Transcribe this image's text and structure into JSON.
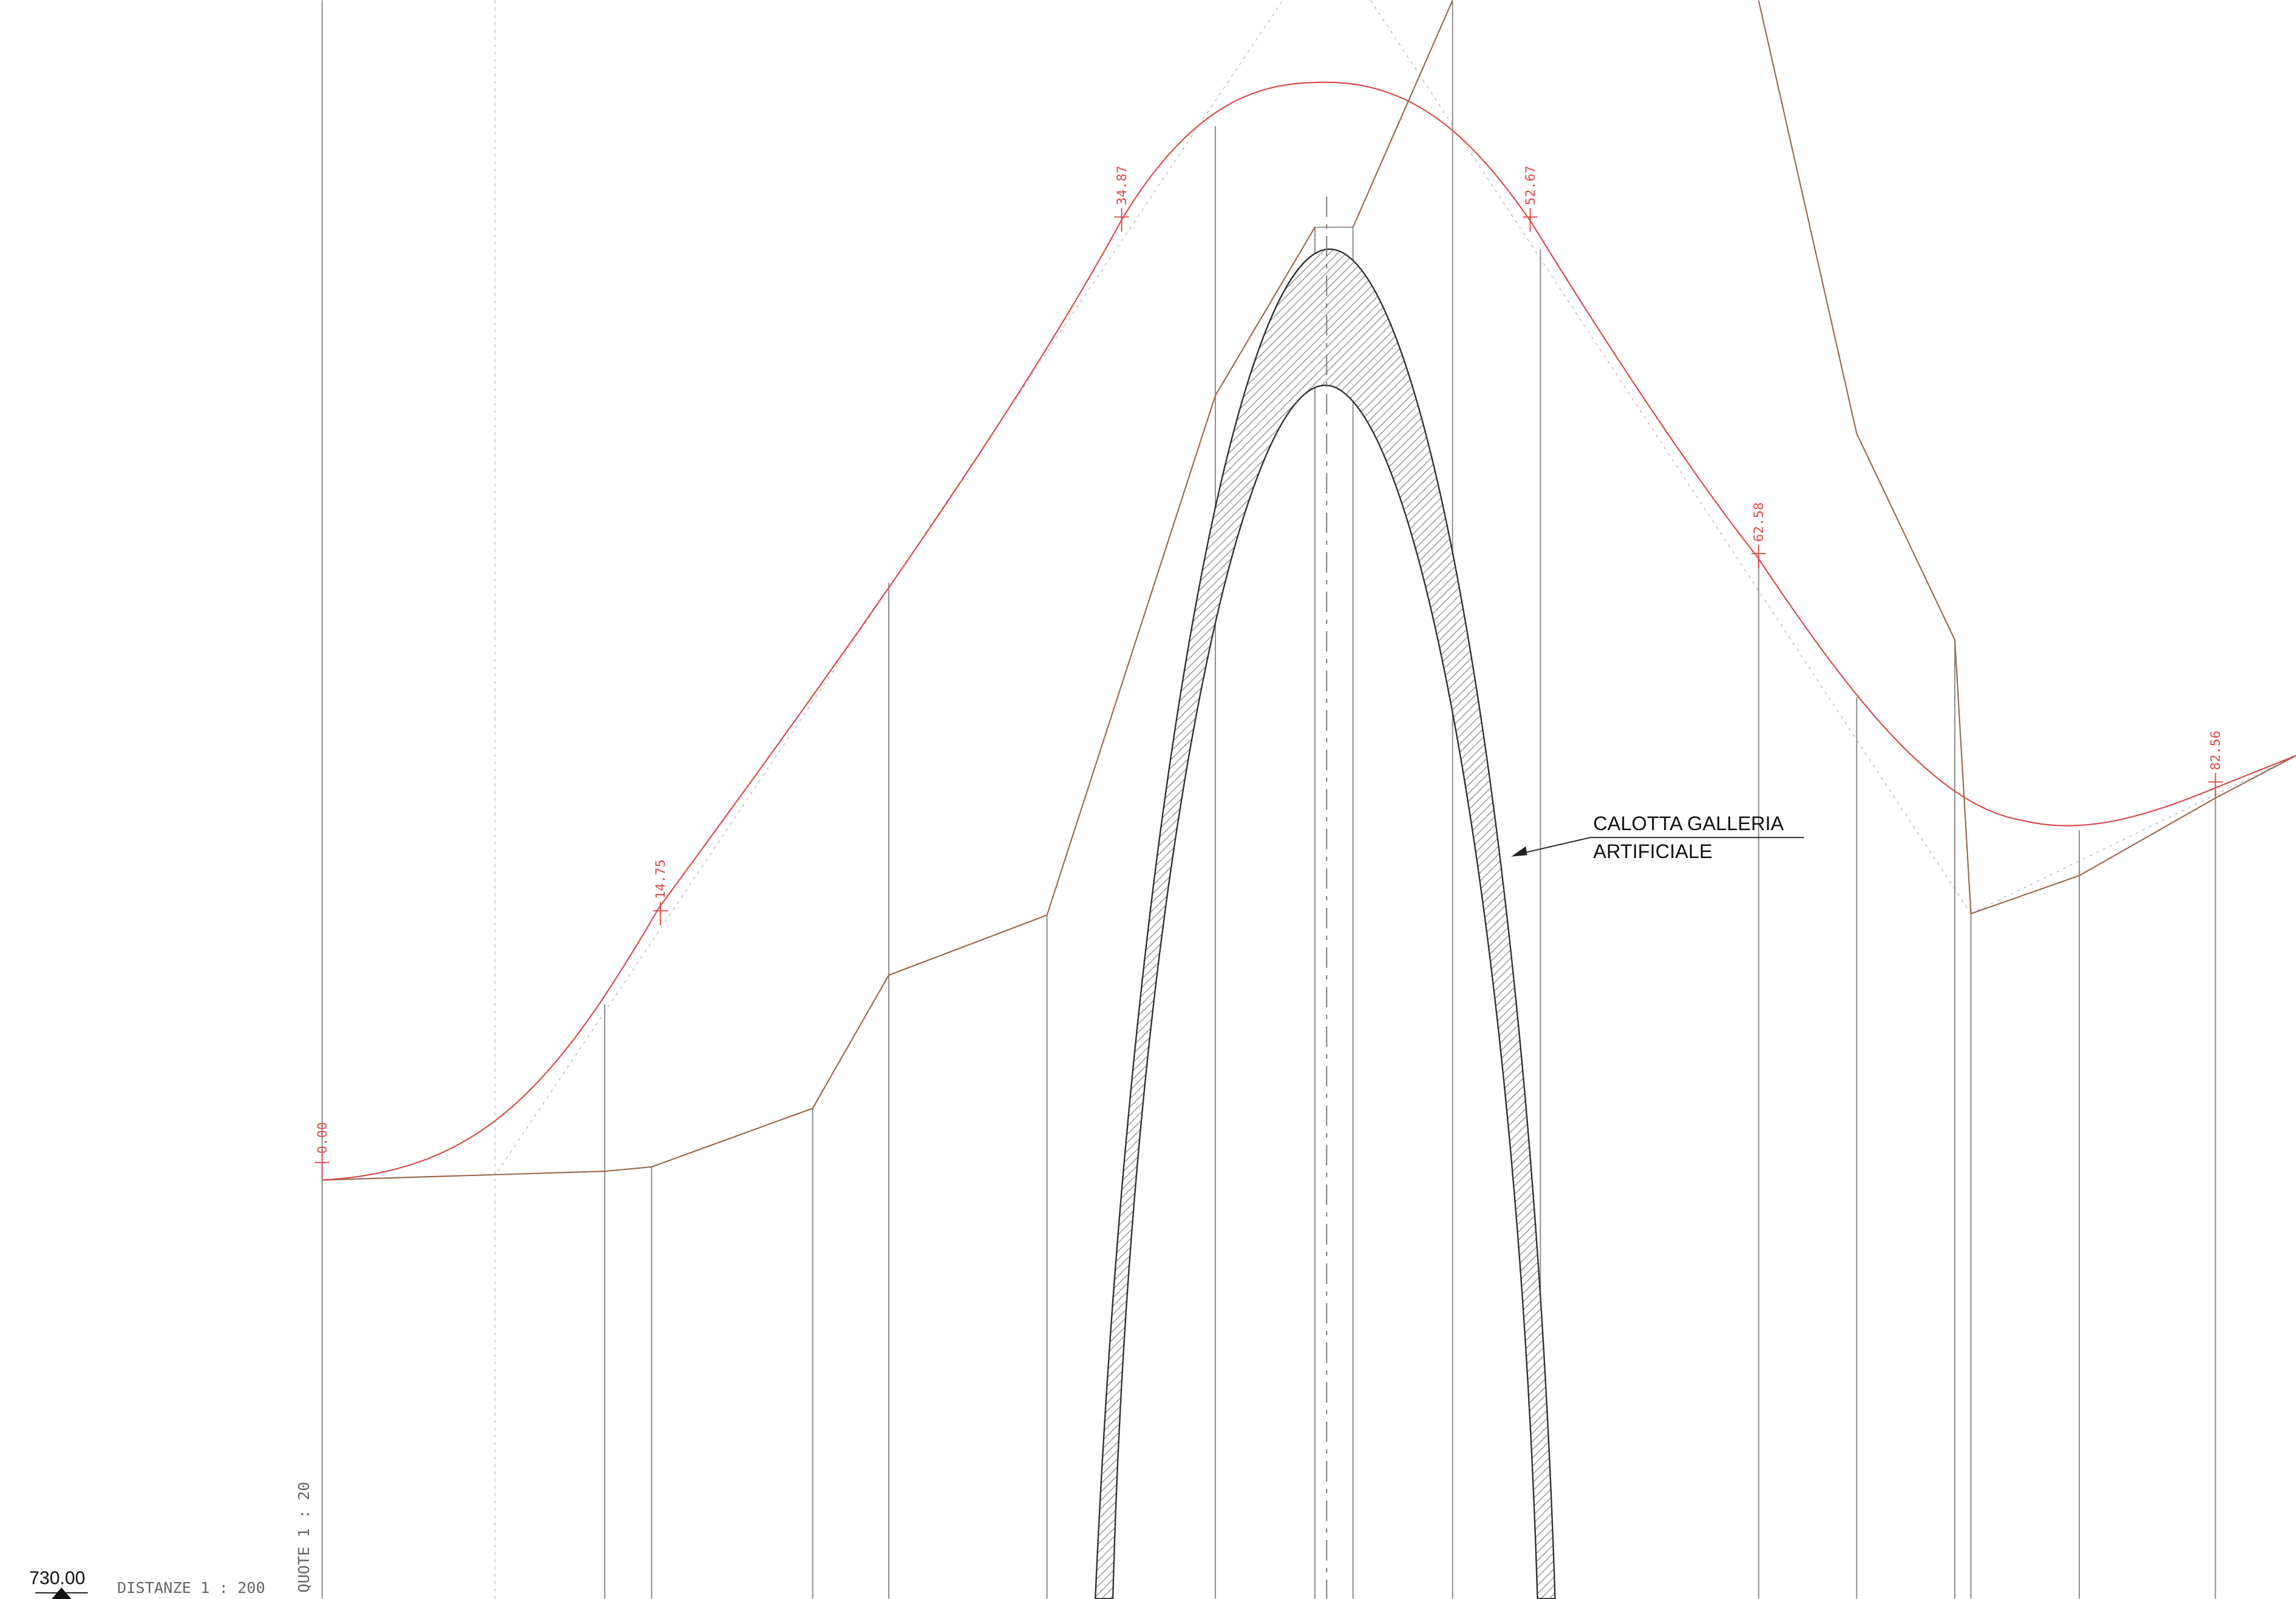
{
  "annotation": {
    "line1": "CALOTTA GALLERIA",
    "line2": "ARTIFICIALE"
  },
  "stations": [
    {
      "label": "0.00"
    },
    {
      "label": "14.75"
    },
    {
      "label": "34.87"
    },
    {
      "label": "52.67"
    },
    {
      "label": "62.58"
    },
    {
      "label": "82.56"
    }
  ],
  "datum": {
    "elevation": "730.00"
  },
  "scales": {
    "distances": "DISTANZE 1 : 200",
    "elevations": "QUOTE 1 : 20"
  },
  "colors": {
    "design_profile": "#d94a4a",
    "terrain_profile": "#9a6a50",
    "section_lines": "#8a8a8a",
    "arch_outline": "#333333",
    "background": "#ffffff"
  }
}
